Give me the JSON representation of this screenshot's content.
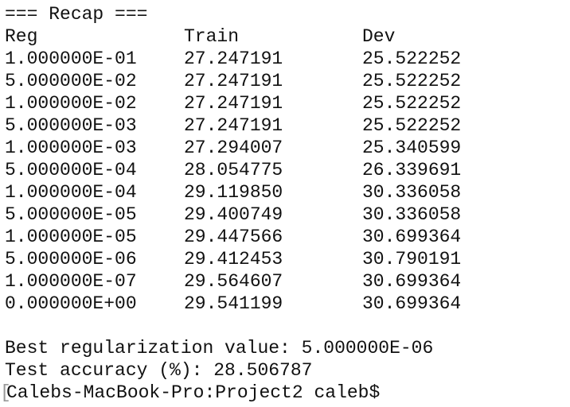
{
  "header": {
    "title": "=== Recap ==="
  },
  "table": {
    "columns": [
      "Reg",
      "Train",
      "Dev"
    ],
    "rows": [
      [
        "1.000000E-01",
        "27.247191",
        "25.522252"
      ],
      [
        "5.000000E-02",
        "27.247191",
        "25.522252"
      ],
      [
        "1.000000E-02",
        "27.247191",
        "25.522252"
      ],
      [
        "5.000000E-03",
        "27.247191",
        "25.522252"
      ],
      [
        "1.000000E-03",
        "27.294007",
        "25.340599"
      ],
      [
        "5.000000E-04",
        "28.054775",
        "26.339691"
      ],
      [
        "1.000000E-04",
        "29.119850",
        "30.336058"
      ],
      [
        "5.000000E-05",
        "29.400749",
        "30.336058"
      ],
      [
        "1.000000E-05",
        "29.447566",
        "30.699364"
      ],
      [
        "5.000000E-06",
        "29.412453",
        "30.790191"
      ],
      [
        "1.000000E-07",
        "29.564607",
        "30.699364"
      ],
      [
        "0.000000E+00",
        "29.541199",
        "30.699364"
      ]
    ]
  },
  "summary": {
    "best": "Best regularization value: 5.000000E-06",
    "test": "Test accuracy (%): 28.506787"
  },
  "prompt": {
    "marker": "[",
    "text": "Calebs-MacBook-Pro:Project2 caleb$"
  }
}
